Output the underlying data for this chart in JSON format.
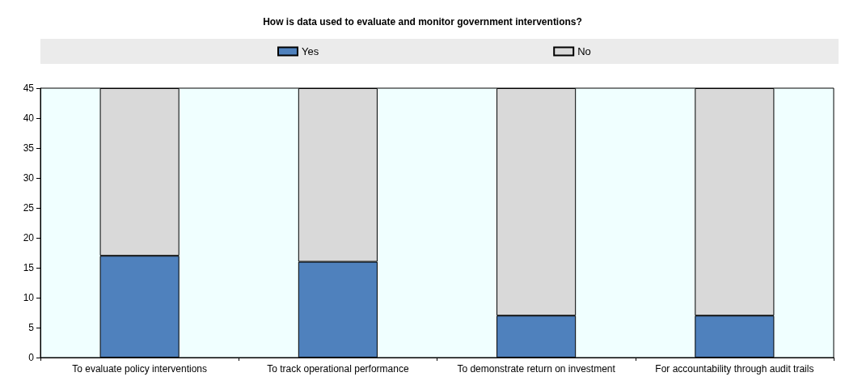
{
  "chart_data": {
    "type": "bar",
    "title": "How is data used to evaluate and monitor government interventions?",
    "categories": [
      "To evaluate policy interventions",
      "To track operational performance",
      "To demonstrate return on investment",
      "For accountability through audit trails"
    ],
    "stacked": true,
    "series": [
      {
        "name": "Yes",
        "color": "#4f81bd",
        "values": [
          17,
          16,
          7,
          7
        ]
      },
      {
        "name": "No",
        "color": "#d9d9d9",
        "values": [
          28,
          29,
          38,
          38
        ]
      }
    ],
    "ylim": [
      0,
      45
    ],
    "yticks": [
      0,
      5,
      10,
      15,
      20,
      25,
      30,
      35,
      40,
      45
    ],
    "grid": false,
    "legend": "top"
  }
}
